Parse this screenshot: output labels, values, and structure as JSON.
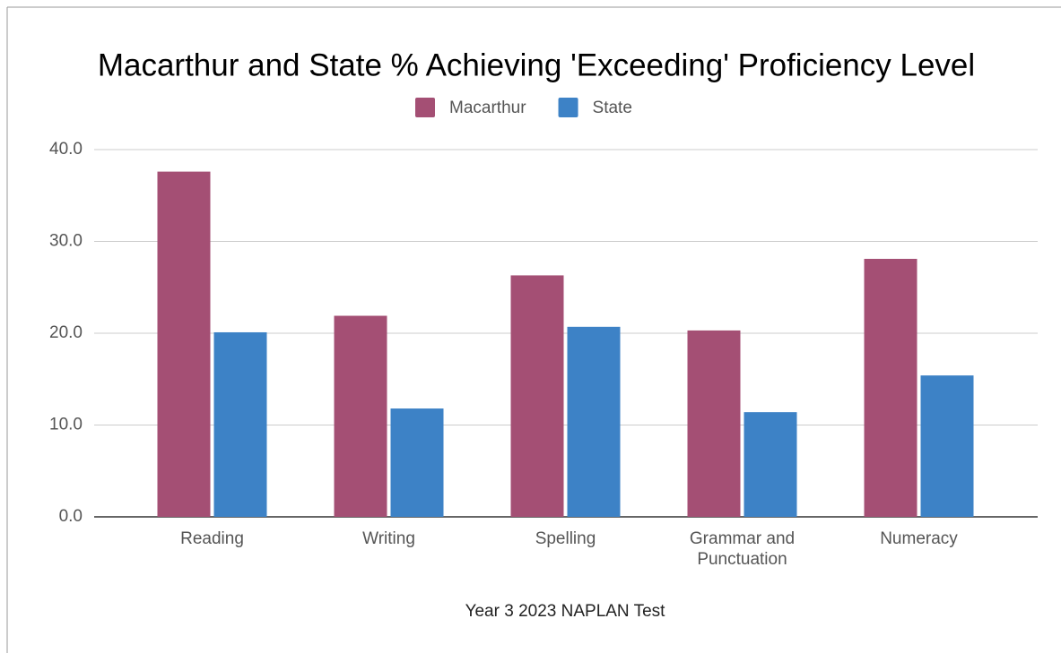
{
  "chart_data": {
    "type": "bar",
    "title": "Macarthur and State % Achieving 'Exceeding' Proficiency Level",
    "x_label": "Year 3 2023 NAPLAN Test",
    "categories": [
      "Reading",
      "Writing",
      "Spelling",
      "Grammar and Punctuation",
      "Numeracy"
    ],
    "series": [
      {
        "name": "Macarthur",
        "color": "#a44f74",
        "values": [
          37.6,
          21.9,
          26.3,
          20.3,
          28.1
        ]
      },
      {
        "name": "State",
        "color": "#3d82c6",
        "values": [
          20.1,
          11.8,
          20.7,
          11.4,
          15.4
        ]
      }
    ],
    "ylim": [
      0,
      40
    ],
    "yticks": [
      {
        "value": 0,
        "label": "0.0"
      },
      {
        "value": 10,
        "label": "10.0"
      },
      {
        "value": 20,
        "label": "20.0"
      },
      {
        "value": 30,
        "label": "30.0"
      },
      {
        "value": 40,
        "label": "40.0"
      }
    ],
    "grid": true,
    "legend": "top"
  }
}
